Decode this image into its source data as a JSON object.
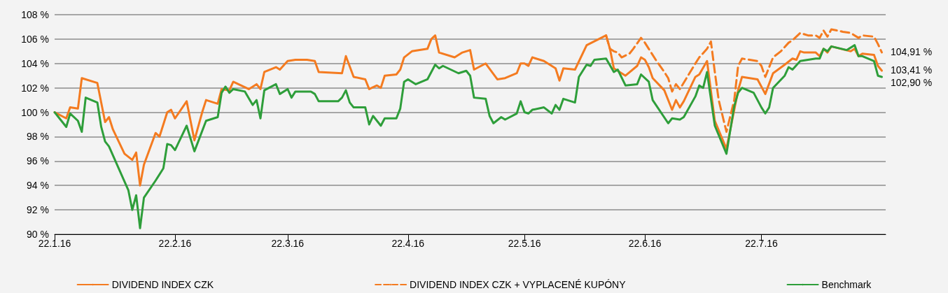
{
  "chart_data": {
    "type": "line",
    "xlim": [
      "2016-01-22",
      "2016-08-23"
    ],
    "xticks": [
      {
        "value": "2016-01-22",
        "label": "22.1.16"
      },
      {
        "value": "2016-02-22",
        "label": "22.2.16"
      },
      {
        "value": "2016-03-22",
        "label": "22.3.16"
      },
      {
        "value": "2016-04-22",
        "label": "22.4.16"
      },
      {
        "value": "2016-05-22",
        "label": "22.5.16"
      },
      {
        "value": "2016-06-22",
        "label": "22.6.16"
      },
      {
        "value": "2016-07-22",
        "label": "22.7.16"
      }
    ],
    "ylim": [
      90,
      108
    ],
    "yticks": [
      {
        "value": 90,
        "label": "90 %"
      },
      {
        "value": 92,
        "label": "92 %"
      },
      {
        "value": 94,
        "label": "94 %"
      },
      {
        "value": 96,
        "label": "96 %"
      },
      {
        "value": 98,
        "label": "98 %"
      },
      {
        "value": 100,
        "label": "100 %"
      },
      {
        "value": 102,
        "label": "102 %"
      },
      {
        "value": 104,
        "label": "104 %"
      },
      {
        "value": 106,
        "label": "106 %"
      },
      {
        "value": 108,
        "label": "108 %"
      }
    ],
    "grid": "y",
    "legend": "bottom",
    "marker": "none",
    "series": [
      {
        "name": "DIVIDEND INDEX CZK",
        "color": "#f47b20",
        "line_style": "solid",
        "x": [
          "2016-01-22",
          "2016-01-25",
          "2016-01-26",
          "2016-01-28",
          "2016-01-29",
          "2016-02-02",
          "2016-02-04",
          "2016-02-05",
          "2016-02-06",
          "2016-02-09",
          "2016-02-11",
          "2016-02-12",
          "2016-02-13",
          "2016-02-14",
          "2016-02-17",
          "2016-02-18",
          "2016-02-20",
          "2016-02-21",
          "2016-02-22",
          "2016-02-25",
          "2016-02-27",
          "2016-02-29",
          "2016-03-01",
          "2016-03-04",
          "2016-03-05",
          "2016-03-07",
          "2016-03-08",
          "2016-03-12",
          "2016-03-14",
          "2016-03-15",
          "2016-03-16",
          "2016-03-19",
          "2016-03-20",
          "2016-03-22",
          "2016-03-24",
          "2016-03-27",
          "2016-03-29",
          "2016-03-30",
          "2016-04-05",
          "2016-04-06",
          "2016-04-08",
          "2016-04-11",
          "2016-04-12",
          "2016-04-14",
          "2016-04-15",
          "2016-04-16",
          "2016-04-19",
          "2016-04-20",
          "2016-04-21",
          "2016-04-23",
          "2016-04-27",
          "2016-04-28",
          "2016-04-29",
          "2016-04-30",
          "2016-05-04",
          "2016-05-06",
          "2016-05-08",
          "2016-05-09",
          "2016-05-12",
          "2016-05-15",
          "2016-05-17",
          "2016-05-20",
          "2016-05-21",
          "2016-05-22",
          "2016-05-23",
          "2016-05-24",
          "2016-05-27",
          "2016-05-29",
          "2016-05-30",
          "2016-05-31",
          "2016-06-01",
          "2016-06-04",
          "2016-06-07",
          "2016-06-12",
          "2016-06-13",
          "2016-06-14",
          "2016-06-17",
          "2016-06-20",
          "2016-06-21",
          "2016-06-22",
          "2016-06-23",
          "2016-06-24",
          "2016-06-27",
          "2016-06-29",
          "2016-06-30",
          "2016-07-01",
          "2016-07-02",
          "2016-07-05",
          "2016-07-06",
          "2016-07-08",
          "2016-07-10",
          "2016-07-13",
          "2016-07-16",
          "2016-07-17",
          "2016-07-21",
          "2016-07-23",
          "2016-07-25",
          "2016-07-28",
          "2016-07-30",
          "2016-07-31",
          "2016-08-01",
          "2016-08-02",
          "2016-08-05",
          "2016-08-06",
          "2016-08-07",
          "2016-08-08",
          "2016-08-09",
          "2016-08-14",
          "2016-08-15",
          "2016-08-16",
          "2016-08-17",
          "2016-08-20",
          "2016-08-21",
          "2016-08-22"
        ],
        "values": [
          100.0,
          99.5,
          100.4,
          100.3,
          102.8,
          102.4,
          99.2,
          99.6,
          98.6,
          96.6,
          96.1,
          96.7,
          94.0,
          95.7,
          98.3,
          98.0,
          100.0,
          100.2,
          99.5,
          100.9,
          97.7,
          100.0,
          101.0,
          100.7,
          101.9,
          101.8,
          102.5,
          101.9,
          102.3,
          101.9,
          103.3,
          103.7,
          103.5,
          104.2,
          104.3,
          104.3,
          104.2,
          103.3,
          103.2,
          104.6,
          102.9,
          102.7,
          101.9,
          102.2,
          102.0,
          103.0,
          103.1,
          103.5,
          104.5,
          105.0,
          105.2,
          106.0,
          106.3,
          104.9,
          104.5,
          104.9,
          105.1,
          103.5,
          104.0,
          102.7,
          102.8,
          103.2,
          104.0,
          104.0,
          103.8,
          104.5,
          104.2,
          103.8,
          103.6,
          102.6,
          103.6,
          103.5,
          105.5,
          106.3,
          105.2,
          103.6,
          103.0,
          103.8,
          104.5,
          104.3,
          103.7,
          102.8,
          101.8,
          100.2,
          101.0,
          100.4,
          100.9,
          102.9,
          103.1,
          104.2,
          99.3,
          97.0,
          101.8,
          102.9,
          102.7,
          101.5,
          103.2,
          103.9,
          104.4,
          104.3,
          105.0,
          104.9,
          104.9,
          104.6,
          105.2,
          104.9,
          105.4,
          105.0,
          105.2,
          104.6,
          104.8,
          104.7,
          103.8,
          103.41
        ]
      },
      {
        "name": "DIVIDEND INDEX CZK + VYPLACENÉ KUPÓNY",
        "color": "#f47b20",
        "line_style": "dashed",
        "x": [
          "2016-06-12",
          "2016-06-13",
          "2016-06-14",
          "2016-06-15",
          "2016-06-16",
          "2016-06-18",
          "2016-06-19",
          "2016-06-21",
          "2016-06-22",
          "2016-06-23",
          "2016-06-25",
          "2016-06-27",
          "2016-06-28",
          "2016-06-29",
          "2016-06-30",
          "2016-07-01",
          "2016-07-05",
          "2016-07-06",
          "2016-07-08",
          "2016-07-09",
          "2016-07-10",
          "2016-07-11",
          "2016-07-13",
          "2016-07-15",
          "2016-07-16",
          "2016-07-17",
          "2016-07-21",
          "2016-07-22",
          "2016-07-23",
          "2016-07-25",
          "2016-07-27",
          "2016-07-29",
          "2016-07-30",
          "2016-08-01",
          "2016-08-03",
          "2016-08-05",
          "2016-08-06",
          "2016-08-07",
          "2016-08-08",
          "2016-08-09",
          "2016-08-12",
          "2016-08-14",
          "2016-08-16",
          "2016-08-17",
          "2016-08-20",
          "2016-08-21",
          "2016-08-22"
        ],
        "values": [
          106.3,
          105.2,
          105.0,
          104.9,
          104.5,
          104.8,
          105.2,
          106.1,
          105.7,
          105.2,
          104.2,
          103.3,
          102.8,
          101.7,
          102.3,
          101.9,
          104.0,
          104.5,
          105.2,
          105.8,
          103.3,
          101.0,
          98.4,
          101.0,
          103.8,
          104.4,
          104.2,
          103.8,
          102.9,
          104.5,
          105.0,
          105.7,
          105.9,
          106.5,
          106.3,
          106.3,
          106.1,
          106.7,
          106.2,
          106.8,
          106.6,
          106.5,
          106.1,
          106.3,
          106.2,
          105.6,
          104.91
        ]
      },
      {
        "name": "Benchmark",
        "color": "#2e9e3a",
        "line_style": "solid",
        "x": [
          "2016-01-22",
          "2016-01-25",
          "2016-01-26",
          "2016-01-28",
          "2016-01-29",
          "2016-01-30",
          "2016-02-02",
          "2016-02-03",
          "2016-02-04",
          "2016-02-05",
          "2016-02-10",
          "2016-02-11",
          "2016-02-12",
          "2016-02-13",
          "2016-02-14",
          "2016-02-17",
          "2016-02-19",
          "2016-02-20",
          "2016-02-21",
          "2016-02-22",
          "2016-02-25",
          "2016-02-27",
          "2016-03-01",
          "2016-03-04",
          "2016-03-05",
          "2016-03-06",
          "2016-03-07",
          "2016-03-08",
          "2016-03-11",
          "2016-03-13",
          "2016-03-14",
          "2016-03-15",
          "2016-03-16",
          "2016-03-19",
          "2016-03-20",
          "2016-03-22",
          "2016-03-23",
          "2016-03-24",
          "2016-03-28",
          "2016-03-29",
          "2016-03-30",
          "2016-04-04",
          "2016-04-05",
          "2016-04-06",
          "2016-04-07",
          "2016-04-08",
          "2016-04-11",
          "2016-04-12",
          "2016-04-13",
          "2016-04-15",
          "2016-04-16",
          "2016-04-19",
          "2016-04-20",
          "2016-04-21",
          "2016-04-22",
          "2016-04-24",
          "2016-04-27",
          "2016-04-29",
          "2016-04-30",
          "2016-05-01",
          "2016-05-05",
          "2016-05-07",
          "2016-05-08",
          "2016-05-09",
          "2016-05-12",
          "2016-05-13",
          "2016-05-14",
          "2016-05-16",
          "2016-05-17",
          "2016-05-20",
          "2016-05-21",
          "2016-05-22",
          "2016-05-23",
          "2016-05-24",
          "2016-05-27",
          "2016-05-29",
          "2016-05-30",
          "2016-05-31",
          "2016-06-01",
          "2016-06-04",
          "2016-06-05",
          "2016-06-07",
          "2016-06-08",
          "2016-06-09",
          "2016-06-12",
          "2016-06-14",
          "2016-06-15",
          "2016-06-17",
          "2016-06-20",
          "2016-06-21",
          "2016-06-23",
          "2016-06-24",
          "2016-06-28",
          "2016-06-29",
          "2016-07-01",
          "2016-07-02",
          "2016-07-05",
          "2016-07-06",
          "2016-07-07",
          "2016-07-08",
          "2016-07-10",
          "2016-07-13",
          "2016-07-15",
          "2016-07-16",
          "2016-07-17",
          "2016-07-20",
          "2016-07-22",
          "2016-07-23",
          "2016-07-24",
          "2016-07-25",
          "2016-07-28",
          "2016-07-29",
          "2016-07-30",
          "2016-08-01",
          "2016-08-05",
          "2016-08-06",
          "2016-08-07",
          "2016-08-08",
          "2016-08-09",
          "2016-08-13",
          "2016-08-15",
          "2016-08-16",
          "2016-08-17",
          "2016-08-20",
          "2016-08-21",
          "2016-08-22"
        ],
        "values": [
          100.0,
          98.8,
          99.9,
          99.3,
          98.4,
          101.2,
          100.8,
          98.8,
          97.6,
          97.2,
          93.6,
          92.0,
          93.2,
          90.5,
          93.0,
          94.4,
          95.4,
          97.4,
          97.3,
          96.9,
          98.9,
          96.8,
          99.3,
          99.6,
          101.6,
          102.1,
          101.6,
          101.9,
          101.7,
          100.6,
          101.0,
          99.5,
          101.8,
          102.3,
          101.5,
          101.9,
          101.2,
          101.7,
          101.7,
          101.5,
          100.9,
          100.9,
          101.2,
          101.8,
          100.8,
          100.4,
          100.4,
          99.0,
          99.7,
          98.9,
          99.5,
          99.5,
          100.3,
          102.5,
          102.7,
          102.3,
          102.7,
          103.9,
          103.6,
          103.8,
          103.2,
          103.4,
          103.0,
          101.2,
          101.1,
          99.7,
          99.1,
          99.6,
          99.4,
          99.9,
          100.9,
          100.0,
          99.9,
          100.2,
          100.4,
          99.9,
          100.6,
          100.2,
          101.1,
          100.8,
          102.9,
          103.9,
          103.8,
          104.3,
          104.4,
          103.3,
          103.5,
          102.2,
          102.3,
          103.1,
          102.5,
          101.0,
          99.1,
          99.5,
          99.4,
          99.6,
          101.3,
          102.2,
          102.0,
          103.3,
          98.9,
          96.6,
          100.5,
          101.6,
          102.0,
          101.6,
          100.4,
          99.9,
          100.4,
          102.0,
          103.0,
          103.7,
          103.5,
          104.2,
          104.4,
          104.4,
          105.2,
          105.0,
          105.4,
          105.1,
          105.5,
          104.6,
          104.6,
          104.2,
          103.0,
          102.9
        ]
      }
    ],
    "annotations": [
      {
        "text": "104,91 %",
        "x": "2016-08-22",
        "y": 104.91
      },
      {
        "text": "103,41 %",
        "x": "2016-08-22",
        "y": 103.41
      },
      {
        "text": "102,90 %",
        "x": "2016-08-22",
        "y": 102.9
      }
    ]
  }
}
